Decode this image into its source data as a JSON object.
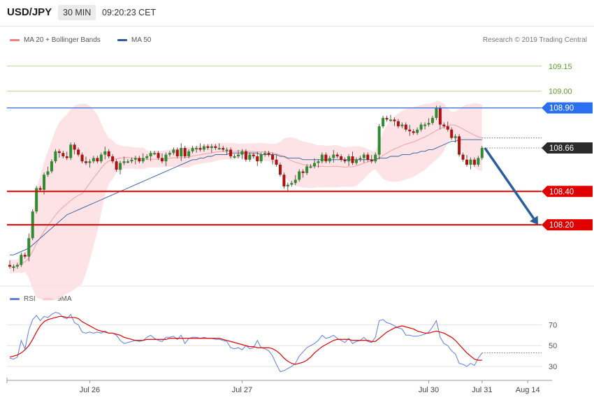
{
  "header": {
    "symbol": "USD/JPY",
    "interval": "30 MIN",
    "time": "09:20:23 CET"
  },
  "legend_top": [
    {
      "label": "MA 20 + Bollinger Bands",
      "color": "#f08080"
    },
    {
      "label": "MA 50",
      "color": "#2b5c9e"
    }
  ],
  "legend_bottom": [
    {
      "label": "RSI",
      "color": "#5b7fe0"
    },
    {
      "label": "9MA",
      "color": "#e00000"
    }
  ],
  "copyright": "Research © 2019 Trading Central",
  "colors": {
    "up": "#2e8b2e",
    "down": "#b01010",
    "band_fill": "#fde0e2",
    "ma20": "#f4a0a0",
    "ma50": "#2b5c9e",
    "resistance": "#2a6ff0",
    "support": "#e00000",
    "arrow": "#2b5c9e",
    "target_grid": "#7ab648"
  },
  "chart_data": {
    "type": "candlestick",
    "y_range": [
      108.0,
      109.22
    ],
    "price_grid": [
      109.15,
      109.0
    ],
    "levels": [
      {
        "value": 108.9,
        "label": "108.90",
        "role": "resistance"
      },
      {
        "value": 108.4,
        "label": "108.40",
        "role": "support"
      },
      {
        "value": 108.2,
        "label": "108.20",
        "role": "support"
      }
    ],
    "last_price": {
      "value": 108.66,
      "label": "108.66"
    },
    "reference_line": 108.72,
    "projection": {
      "from": 108.66,
      "to": 108.2
    },
    "x_labels": [
      {
        "label": "Jul 26",
        "i": 21
      },
      {
        "label": "Jul 27",
        "i": 61
      },
      {
        "label": "Jul 30",
        "i": 110
      },
      {
        "label": "Jul 31",
        "i": 124
      },
      {
        "label": "Aug 14",
        "i": 136
      }
    ],
    "closes": [
      107.95,
      107.95,
      107.96,
      108.02,
      108.01,
      108.12,
      108.28,
      108.42,
      108.41,
      108.5,
      108.52,
      108.58,
      108.64,
      108.63,
      108.61,
      108.6,
      108.68,
      108.65,
      108.62,
      108.58,
      108.57,
      108.58,
      108.6,
      108.58,
      108.62,
      108.64,
      108.61,
      108.58,
      108.53,
      108.57,
      108.58,
      108.58,
      108.59,
      108.6,
      108.58,
      108.6,
      108.61,
      108.63,
      108.63,
      108.6,
      108.58,
      108.62,
      108.63,
      108.65,
      108.61,
      108.66,
      108.61,
      108.64,
      108.66,
      108.66,
      108.65,
      108.67,
      108.66,
      108.67,
      108.66,
      108.66,
      108.65,
      108.65,
      108.61,
      108.61,
      108.62,
      108.64,
      108.59,
      108.62,
      108.61,
      108.58,
      108.62,
      108.63,
      108.62,
      108.59,
      108.56,
      108.5,
      108.43,
      108.44,
      108.45,
      108.47,
      108.52,
      108.51,
      108.55,
      108.55,
      108.57,
      108.58,
      108.62,
      108.58,
      108.6,
      108.62,
      108.61,
      108.59,
      108.58,
      108.61,
      108.57,
      108.59,
      108.6,
      108.62,
      108.59,
      108.58,
      108.62,
      108.79,
      108.84,
      108.83,
      108.83,
      108.82,
      108.79,
      108.8,
      108.77,
      108.76,
      108.75,
      108.77,
      108.8,
      108.8,
      108.81,
      108.84,
      108.9,
      108.8,
      108.79,
      108.77,
      108.72,
      108.73,
      108.62,
      108.59,
      108.56,
      108.59,
      108.56,
      108.6,
      108.66
    ],
    "ma50": [
      108.02,
      108.02,
      108.03,
      108.04,
      108.05,
      108.06,
      108.08,
      108.1,
      108.12,
      108.14,
      108.16,
      108.18,
      108.2,
      108.22,
      108.24,
      108.26,
      108.27,
      108.28,
      108.29,
      108.3,
      108.31,
      108.32,
      108.33,
      108.34,
      108.35,
      108.36,
      108.37,
      108.38,
      108.39,
      108.4,
      108.41,
      108.42,
      108.43,
      108.44,
      108.45,
      108.46,
      108.47,
      108.48,
      108.49,
      108.5,
      108.51,
      108.52,
      108.53,
      108.54,
      108.55,
      108.56,
      108.57,
      108.58,
      108.59,
      108.59,
      108.6,
      108.6,
      108.61,
      108.61,
      108.62,
      108.62,
      108.62,
      108.62,
      108.63,
      108.63,
      108.63,
      108.63,
      108.63,
      108.63,
      108.63,
      108.63,
      108.62,
      108.62,
      108.62,
      108.62,
      108.62,
      108.61,
      108.61,
      108.6,
      108.6,
      108.6,
      108.6,
      108.59,
      108.59,
      108.59,
      108.59,
      108.59,
      108.59,
      108.59,
      108.59,
      108.59,
      108.59,
      108.59,
      108.59,
      108.59,
      108.59,
      108.59,
      108.59,
      108.59,
      108.59,
      108.59,
      108.59,
      108.6,
      108.6,
      108.6,
      108.61,
      108.61,
      108.61,
      108.62,
      108.62,
      108.62,
      108.63,
      108.63,
      108.64,
      108.64,
      108.65,
      108.65,
      108.66,
      108.67,
      108.68,
      108.69,
      108.7,
      108.7,
      108.71,
      108.71,
      108.71,
      108.71,
      108.71,
      108.71,
      108.71
    ],
    "rsi": [
      38,
      37,
      39,
      55,
      47,
      65,
      75,
      79,
      74,
      78,
      77,
      80,
      82,
      81,
      77,
      76,
      80,
      72,
      70,
      63,
      62,
      63,
      62,
      63,
      62,
      64,
      62,
      62,
      60,
      55,
      52,
      53,
      54,
      55,
      54,
      55,
      58,
      60,
      57,
      55,
      54,
      58,
      58,
      59,
      56,
      60,
      52,
      57,
      58,
      58,
      57,
      58,
      57,
      57,
      56,
      56,
      55,
      54,
      48,
      47,
      48,
      46,
      50,
      47,
      48,
      55,
      48,
      47,
      45,
      40,
      32,
      25,
      26,
      28,
      30,
      33,
      40,
      44,
      48,
      50,
      52,
      55,
      60,
      57,
      58,
      60,
      57,
      55,
      53,
      57,
      52,
      54,
      55,
      58,
      54,
      53,
      58,
      74,
      75,
      72,
      71,
      69,
      67,
      66,
      60,
      60,
      59,
      59,
      60,
      61,
      63,
      68,
      74,
      58,
      52,
      50,
      45,
      42,
      33,
      32,
      30,
      33,
      31,
      38,
      43
    ],
    "rsi_ma9": [
      39,
      40,
      41,
      43,
      46,
      50,
      56,
      63,
      69,
      73,
      75,
      76,
      77,
      78,
      78,
      77,
      77,
      77,
      76,
      73,
      71,
      69,
      67,
      65,
      64,
      63,
      62,
      62,
      61,
      60,
      58,
      57,
      56,
      55,
      55,
      55,
      56,
      56,
      56,
      56,
      56,
      56,
      57,
      57,
      57,
      57,
      57,
      57,
      57,
      57,
      57,
      57,
      57,
      57,
      57,
      57,
      56,
      55,
      54,
      53,
      52,
      51,
      50,
      49,
      49,
      48,
      48,
      48,
      48,
      47,
      45,
      42,
      38,
      35,
      33,
      32,
      33,
      34,
      36,
      39,
      43,
      46,
      49,
      51,
      53,
      55,
      56,
      56,
      56,
      56,
      55,
      55,
      55,
      55,
      55,
      54,
      54,
      57,
      60,
      63,
      65,
      67,
      68,
      69,
      68,
      67,
      66,
      64,
      63,
      62,
      62,
      63,
      64,
      63,
      62,
      60,
      58,
      55,
      51,
      47,
      43,
      40,
      37,
      36,
      36
    ],
    "rsi_levels": [
      70,
      50,
      30
    ]
  }
}
